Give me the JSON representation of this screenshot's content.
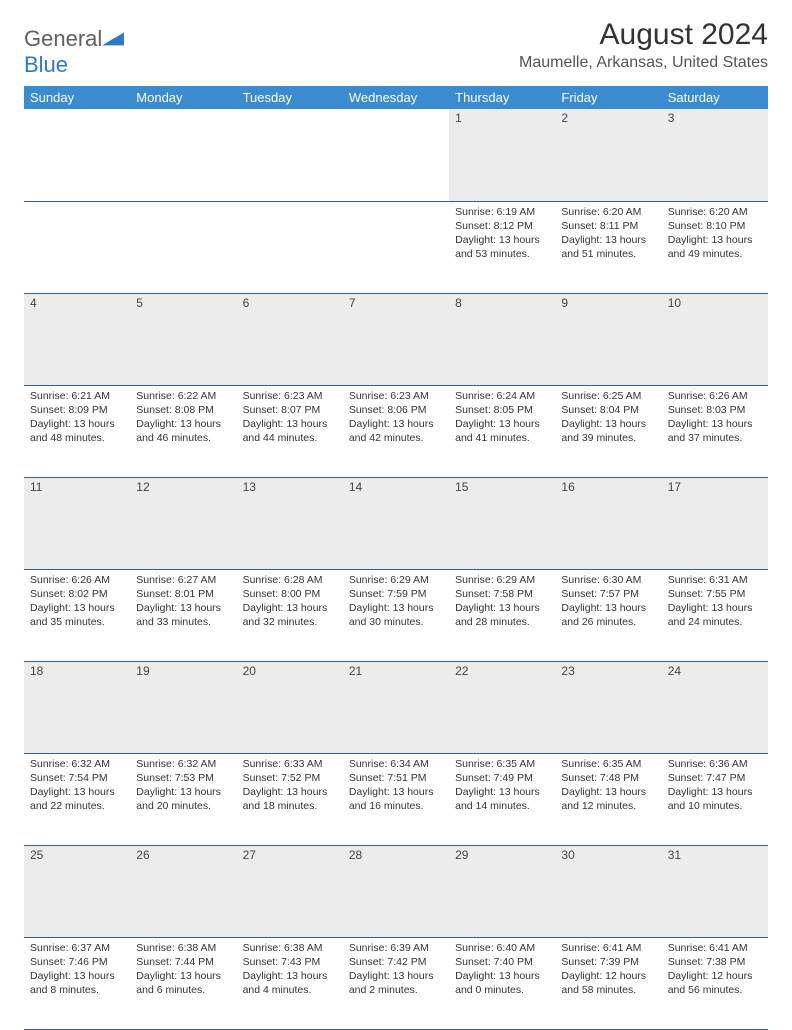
{
  "logo": {
    "word1": "General",
    "word2": "Blue"
  },
  "title": "August 2024",
  "location": "Maumelle, Arkansas, United States",
  "header_bg": "#3b8bd0",
  "daynum_bg": "#ececec",
  "border_color": "#2c5f8d",
  "weekdays": [
    "Sunday",
    "Monday",
    "Tuesday",
    "Wednesday",
    "Thursday",
    "Friday",
    "Saturday"
  ],
  "weeks": [
    [
      null,
      null,
      null,
      null,
      {
        "n": "1",
        "sr": "6:19 AM",
        "ss": "8:12 PM",
        "dl": "13 hours and 53 minutes."
      },
      {
        "n": "2",
        "sr": "6:20 AM",
        "ss": "8:11 PM",
        "dl": "13 hours and 51 minutes."
      },
      {
        "n": "3",
        "sr": "6:20 AM",
        "ss": "8:10 PM",
        "dl": "13 hours and 49 minutes."
      }
    ],
    [
      {
        "n": "4",
        "sr": "6:21 AM",
        "ss": "8:09 PM",
        "dl": "13 hours and 48 minutes."
      },
      {
        "n": "5",
        "sr": "6:22 AM",
        "ss": "8:08 PM",
        "dl": "13 hours and 46 minutes."
      },
      {
        "n": "6",
        "sr": "6:23 AM",
        "ss": "8:07 PM",
        "dl": "13 hours and 44 minutes."
      },
      {
        "n": "7",
        "sr": "6:23 AM",
        "ss": "8:06 PM",
        "dl": "13 hours and 42 minutes."
      },
      {
        "n": "8",
        "sr": "6:24 AM",
        "ss": "8:05 PM",
        "dl": "13 hours and 41 minutes."
      },
      {
        "n": "9",
        "sr": "6:25 AM",
        "ss": "8:04 PM",
        "dl": "13 hours and 39 minutes."
      },
      {
        "n": "10",
        "sr": "6:26 AM",
        "ss": "8:03 PM",
        "dl": "13 hours and 37 minutes."
      }
    ],
    [
      {
        "n": "11",
        "sr": "6:26 AM",
        "ss": "8:02 PM",
        "dl": "13 hours and 35 minutes."
      },
      {
        "n": "12",
        "sr": "6:27 AM",
        "ss": "8:01 PM",
        "dl": "13 hours and 33 minutes."
      },
      {
        "n": "13",
        "sr": "6:28 AM",
        "ss": "8:00 PM",
        "dl": "13 hours and 32 minutes."
      },
      {
        "n": "14",
        "sr": "6:29 AM",
        "ss": "7:59 PM",
        "dl": "13 hours and 30 minutes."
      },
      {
        "n": "15",
        "sr": "6:29 AM",
        "ss": "7:58 PM",
        "dl": "13 hours and 28 minutes."
      },
      {
        "n": "16",
        "sr": "6:30 AM",
        "ss": "7:57 PM",
        "dl": "13 hours and 26 minutes."
      },
      {
        "n": "17",
        "sr": "6:31 AM",
        "ss": "7:55 PM",
        "dl": "13 hours and 24 minutes."
      }
    ],
    [
      {
        "n": "18",
        "sr": "6:32 AM",
        "ss": "7:54 PM",
        "dl": "13 hours and 22 minutes."
      },
      {
        "n": "19",
        "sr": "6:32 AM",
        "ss": "7:53 PM",
        "dl": "13 hours and 20 minutes."
      },
      {
        "n": "20",
        "sr": "6:33 AM",
        "ss": "7:52 PM",
        "dl": "13 hours and 18 minutes."
      },
      {
        "n": "21",
        "sr": "6:34 AM",
        "ss": "7:51 PM",
        "dl": "13 hours and 16 minutes."
      },
      {
        "n": "22",
        "sr": "6:35 AM",
        "ss": "7:49 PM",
        "dl": "13 hours and 14 minutes."
      },
      {
        "n": "23",
        "sr": "6:35 AM",
        "ss": "7:48 PM",
        "dl": "13 hours and 12 minutes."
      },
      {
        "n": "24",
        "sr": "6:36 AM",
        "ss": "7:47 PM",
        "dl": "13 hours and 10 minutes."
      }
    ],
    [
      {
        "n": "25",
        "sr": "6:37 AM",
        "ss": "7:46 PM",
        "dl": "13 hours and 8 minutes."
      },
      {
        "n": "26",
        "sr": "6:38 AM",
        "ss": "7:44 PM",
        "dl": "13 hours and 6 minutes."
      },
      {
        "n": "27",
        "sr": "6:38 AM",
        "ss": "7:43 PM",
        "dl": "13 hours and 4 minutes."
      },
      {
        "n": "28",
        "sr": "6:39 AM",
        "ss": "7:42 PM",
        "dl": "13 hours and 2 minutes."
      },
      {
        "n": "29",
        "sr": "6:40 AM",
        "ss": "7:40 PM",
        "dl": "13 hours and 0 minutes."
      },
      {
        "n": "30",
        "sr": "6:41 AM",
        "ss": "7:39 PM",
        "dl": "12 hours and 58 minutes."
      },
      {
        "n": "31",
        "sr": "6:41 AM",
        "ss": "7:38 PM",
        "dl": "12 hours and 56 minutes."
      }
    ]
  ],
  "labels": {
    "sunrise": "Sunrise:",
    "sunset": "Sunset:",
    "daylight": "Daylight:"
  }
}
